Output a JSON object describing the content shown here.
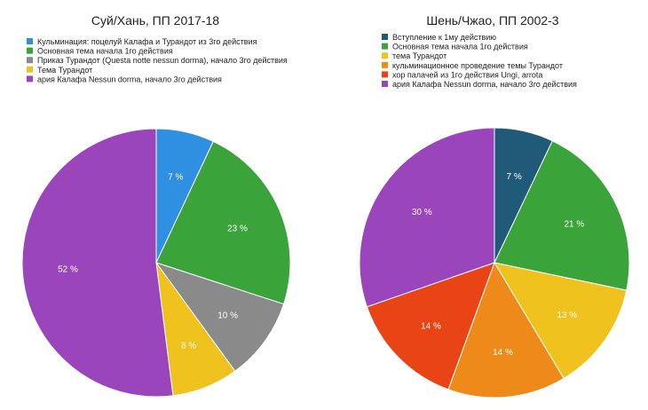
{
  "chart_data": [
    {
      "type": "pie",
      "title": "Суй/Хань, ПП 2017-18",
      "slices": [
        {
          "label": "Кульминация: поцелуй Калафа и Турандот из 3го действия",
          "value": 7,
          "display": "7 %",
          "color": "#2f8fe0"
        },
        {
          "label": "Основная тема начала 1го действия",
          "value": 23,
          "display": "23 %",
          "color": "#3aa33a"
        },
        {
          "label": "Приказ Турандот (Questa notte nessun dorma), начало 3го действия",
          "value": 10,
          "display": "10 %",
          "color": "#8a8a8a"
        },
        {
          "label": "Тема Турандот",
          "value": 8,
          "display": "8 %",
          "color": "#f0c21e"
        },
        {
          "label": "ария Калафа Nessun dorma, начало 3го действия",
          "value": 52,
          "display": "52 %",
          "color": "#9b45bd"
        }
      ]
    },
    {
      "type": "pie",
      "title": "Шень/Чжао, ПП 2002-3",
      "slices": [
        {
          "label": "Вступление к 1му действию",
          "value": 7,
          "display": "7 %",
          "color": "#1f5a78"
        },
        {
          "label": "Основная тема начала 1го действия",
          "value": 21,
          "display": "21 %",
          "color": "#3aa33a"
        },
        {
          "label": "тема Турандот",
          "value": 13,
          "display": "13 %",
          "color": "#f0c21e"
        },
        {
          "label": "кульминационное проведение темы Турандот",
          "value": 14,
          "display": "14 %",
          "color": "#ee8a1a"
        },
        {
          "label": "хор палачей из 1го действия Ungi, arrota",
          "value": 14,
          "display": "14 %",
          "color": "#e84416"
        },
        {
          "label": "ария Калафа Nessun dorma, начало 3го действия",
          "value": 30,
          "display": "30 %",
          "color": "#9b45bd"
        }
      ]
    }
  ]
}
